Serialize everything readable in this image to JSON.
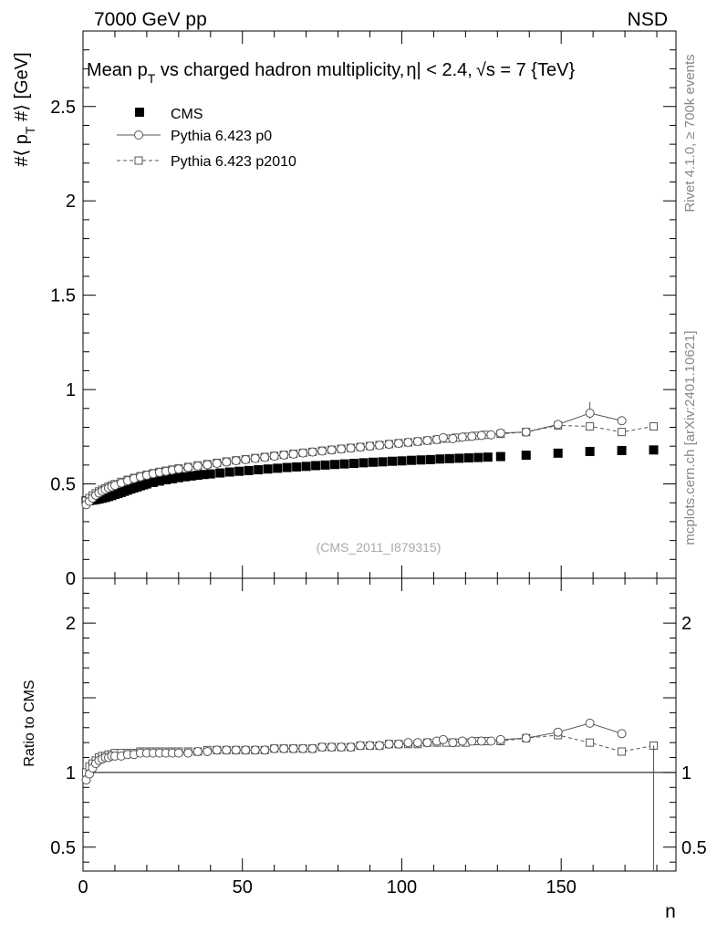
{
  "header": {
    "left": "7000 GeV pp",
    "right": "NSD"
  },
  "side_labels": {
    "rivet": "Rivet 4.1.0, ≥ 700k events",
    "mcplots": "mcplots.cern.ch [arXiv:2401.10621]"
  },
  "chart_data": [
    {
      "type": "scatter",
      "title": "Mean p_T vs charged hadron multiplicity, |η| < 2.4, √s = 7 {TeV}",
      "title_parts": {
        "a": "Mean p",
        "sub": "T",
        "b": " vs charged hadron multiplicity,",
        "c": "η| < 2.4,",
        "d": "√s = 7 {TeV}"
      },
      "ylabel": "#⟨ p_T #⟩ [GeV]",
      "ylabel_parts": {
        "a": "#⟨ p",
        "sub": "T",
        "b": " #⟩ [GeV]"
      },
      "xlim": [
        0,
        186
      ],
      "ylim": [
        0,
        2.9
      ],
      "yticks": [
        0,
        0.5,
        1,
        1.5,
        2,
        2.5
      ],
      "ytick_labels": [
        "0",
        "0.5",
        "1",
        "1.5",
        "2",
        "2.5"
      ],
      "analysis_label": "(CMS_2011_I879315)",
      "legend": [
        {
          "name": "CMS",
          "marker": "filled-square"
        },
        {
          "name": "Pythia 6.423 p0",
          "marker": "open-circle",
          "line": "solid"
        },
        {
          "name": "Pythia 6.423 p2010",
          "marker": "open-square",
          "line": "dashed"
        }
      ],
      "series": [
        {
          "name": "CMS",
          "x": [
            1,
            2,
            3,
            4,
            5,
            6,
            7,
            8,
            9,
            10,
            11,
            12,
            13,
            14,
            15,
            16,
            17,
            18,
            19,
            20,
            22,
            24,
            26,
            28,
            30,
            32,
            34,
            36,
            38,
            40,
            43,
            46,
            49,
            52,
            55,
            58,
            61,
            64,
            67,
            70,
            73,
            76,
            79,
            82,
            85,
            88,
            91,
            94,
            97,
            100,
            103,
            106,
            109,
            112,
            115,
            118,
            121,
            124,
            127,
            131,
            139,
            149,
            159,
            169,
            179
          ],
          "y": [
            0.41,
            0.412,
            0.414,
            0.417,
            0.42,
            0.424,
            0.428,
            0.433,
            0.438,
            0.444,
            0.449,
            0.455,
            0.461,
            0.467,
            0.473,
            0.479,
            0.484,
            0.49,
            0.495,
            0.5,
            0.508,
            0.515,
            0.522,
            0.527,
            0.533,
            0.538,
            0.542,
            0.546,
            0.55,
            0.553,
            0.558,
            0.563,
            0.567,
            0.571,
            0.575,
            0.579,
            0.583,
            0.587,
            0.59,
            0.593,
            0.597,
            0.6,
            0.603,
            0.606,
            0.609,
            0.612,
            0.615,
            0.617,
            0.62,
            0.622,
            0.625,
            0.627,
            0.629,
            0.632,
            0.634,
            0.636,
            0.638,
            0.64,
            0.642,
            0.645,
            0.652,
            0.663,
            0.672,
            0.677,
            0.68
          ]
        },
        {
          "name": "Pythia 6.423 p0",
          "x": [
            1,
            2,
            3,
            4,
            5,
            6,
            7,
            8,
            9,
            10,
            12,
            14,
            16,
            18,
            20,
            22,
            24,
            26,
            28,
            30,
            33,
            36,
            39,
            42,
            45,
            48,
            51,
            54,
            57,
            60,
            63,
            66,
            69,
            72,
            75,
            78,
            81,
            84,
            87,
            90,
            93,
            96,
            99,
            102,
            105,
            108,
            111,
            113,
            116,
            119,
            122,
            125,
            128,
            131,
            139,
            149,
            159,
            169
          ],
          "y": [
            0.39,
            0.408,
            0.425,
            0.44,
            0.452,
            0.462,
            0.47,
            0.478,
            0.485,
            0.492,
            0.505,
            0.517,
            0.528,
            0.538,
            0.546,
            0.554,
            0.561,
            0.567,
            0.573,
            0.579,
            0.587,
            0.595,
            0.602,
            0.609,
            0.616,
            0.623,
            0.629,
            0.635,
            0.641,
            0.647,
            0.653,
            0.658,
            0.664,
            0.669,
            0.674,
            0.68,
            0.685,
            0.69,
            0.695,
            0.7,
            0.705,
            0.71,
            0.715,
            0.72,
            0.725,
            0.73,
            0.735,
            0.745,
            0.74,
            0.748,
            0.752,
            0.757,
            0.76,
            0.77,
            0.775,
            0.815,
            0.875,
            0.835
          ],
          "yerr_high": [
            0,
            0,
            0,
            0,
            0,
            0,
            0,
            0,
            0,
            0,
            0,
            0,
            0,
            0,
            0,
            0,
            0,
            0,
            0,
            0,
            0,
            0,
            0,
            0,
            0,
            0,
            0,
            0,
            0,
            0,
            0,
            0,
            0,
            0,
            0,
            0,
            0,
            0,
            0,
            0,
            0,
            0,
            0,
            0,
            0,
            0,
            0,
            0,
            0,
            0,
            0,
            0,
            0,
            0,
            0,
            0,
            0.06,
            0
          ]
        },
        {
          "name": "Pythia 6.423 p2010",
          "x": [
            1,
            2,
            3,
            4,
            5,
            6,
            7,
            8,
            9,
            10,
            12,
            14,
            16,
            18,
            20,
            22,
            24,
            26,
            28,
            30,
            33,
            36,
            39,
            42,
            45,
            48,
            51,
            54,
            57,
            60,
            63,
            66,
            69,
            72,
            75,
            78,
            81,
            84,
            87,
            90,
            93,
            96,
            99,
            102,
            105,
            108,
            111,
            114,
            117,
            120,
            123,
            126,
            131,
            139,
            149,
            159,
            169,
            179
          ],
          "y": [
            0.41,
            0.425,
            0.438,
            0.45,
            0.46,
            0.469,
            0.477,
            0.485,
            0.492,
            0.499,
            0.511,
            0.522,
            0.532,
            0.541,
            0.549,
            0.557,
            0.564,
            0.57,
            0.576,
            0.582,
            0.59,
            0.598,
            0.605,
            0.612,
            0.619,
            0.625,
            0.631,
            0.637,
            0.643,
            0.649,
            0.654,
            0.66,
            0.665,
            0.67,
            0.676,
            0.681,
            0.686,
            0.691,
            0.696,
            0.701,
            0.706,
            0.711,
            0.716,
            0.72,
            0.725,
            0.73,
            0.735,
            0.74,
            0.745,
            0.75,
            0.755,
            0.76,
            0.765,
            0.775,
            0.81,
            0.805,
            0.775,
            0.805
          ]
        }
      ]
    },
    {
      "type": "scatter",
      "title": "",
      "ylabel": "Ratio to CMS",
      "xlabel": "n",
      "xlim": [
        0,
        186
      ],
      "ylim": [
        0.34,
        2.3
      ],
      "yticks": [
        0.5,
        1,
        2
      ],
      "ytick_labels": [
        "0.5",
        "1",
        "2"
      ],
      "xticks": [
        0,
        50,
        100,
        150
      ],
      "xtick_labels": [
        "0",
        "50",
        "100",
        "150"
      ],
      "reference_line": 1,
      "series": [
        {
          "name": "Pythia 6.423 p0 / CMS",
          "x": [
            1,
            2,
            3,
            4,
            5,
            6,
            7,
            8,
            9,
            10,
            12,
            14,
            16,
            18,
            20,
            22,
            24,
            26,
            28,
            30,
            33,
            36,
            39,
            42,
            45,
            48,
            51,
            54,
            57,
            60,
            63,
            66,
            69,
            72,
            75,
            78,
            81,
            84,
            87,
            90,
            93,
            96,
            99,
            102,
            105,
            108,
            111,
            113,
            116,
            119,
            122,
            125,
            128,
            131,
            139,
            149,
            159,
            169
          ],
          "y": [
            0.95,
            0.99,
            1.03,
            1.06,
            1.08,
            1.09,
            1.1,
            1.1,
            1.11,
            1.11,
            1.11,
            1.12,
            1.12,
            1.13,
            1.13,
            1.13,
            1.13,
            1.13,
            1.13,
            1.13,
            1.13,
            1.14,
            1.14,
            1.15,
            1.15,
            1.15,
            1.15,
            1.15,
            1.15,
            1.16,
            1.16,
            1.16,
            1.16,
            1.16,
            1.17,
            1.17,
            1.17,
            1.17,
            1.18,
            1.18,
            1.18,
            1.19,
            1.19,
            1.2,
            1.2,
            1.2,
            1.21,
            1.22,
            1.2,
            1.21,
            1.21,
            1.21,
            1.21,
            1.22,
            1.23,
            1.27,
            1.33,
            1.26
          ]
        },
        {
          "name": "Pythia 6.423 p2010 / CMS",
          "x": [
            1,
            2,
            3,
            4,
            5,
            6,
            7,
            8,
            9,
            10,
            12,
            14,
            16,
            18,
            20,
            22,
            24,
            26,
            28,
            30,
            33,
            36,
            39,
            42,
            45,
            48,
            51,
            54,
            57,
            60,
            63,
            66,
            69,
            72,
            75,
            78,
            81,
            84,
            87,
            90,
            93,
            96,
            99,
            102,
            105,
            108,
            111,
            114,
            117,
            120,
            123,
            126,
            131,
            139,
            149,
            159,
            169,
            179
          ],
          "y": [
            1.0,
            1.04,
            1.06,
            1.08,
            1.1,
            1.11,
            1.11,
            1.12,
            1.12,
            1.13,
            1.13,
            1.13,
            1.13,
            1.14,
            1.14,
            1.14,
            1.14,
            1.14,
            1.14,
            1.14,
            1.14,
            1.14,
            1.15,
            1.15,
            1.15,
            1.15,
            1.15,
            1.15,
            1.15,
            1.16,
            1.16,
            1.16,
            1.16,
            1.16,
            1.17,
            1.17,
            1.17,
            1.17,
            1.18,
            1.18,
            1.18,
            1.19,
            1.19,
            1.19,
            1.19,
            1.2,
            1.2,
            1.2,
            1.2,
            1.2,
            1.21,
            1.21,
            1.21,
            1.23,
            1.25,
            1.2,
            1.14,
            1.18
          ]
        }
      ]
    }
  ]
}
